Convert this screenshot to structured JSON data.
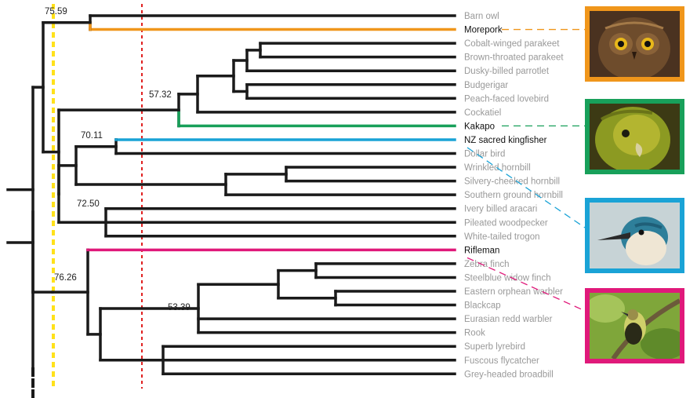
{
  "tree": {
    "leaves": [
      {
        "name": "Barn owl",
        "highlight": false
      },
      {
        "name": "Morepork",
        "highlight": true
      },
      {
        "name": "Cobalt-winged parakeet",
        "highlight": false
      },
      {
        "name": "Brown-throated parakeet",
        "highlight": false
      },
      {
        "name": "Dusky-billed parrotlet",
        "highlight": false
      },
      {
        "name": "Budgerigar",
        "highlight": false
      },
      {
        "name": "Peach-faced lovebird",
        "highlight": false
      },
      {
        "name": "Cockatiel",
        "highlight": false
      },
      {
        "name": "Kakapo",
        "highlight": true
      },
      {
        "name": "NZ sacred kingfisher",
        "highlight": true
      },
      {
        "name": "Dollar bird",
        "highlight": false
      },
      {
        "name": "Wrinkled hornbill",
        "highlight": false
      },
      {
        "name": "Silvery-cheeked hornbill",
        "highlight": false
      },
      {
        "name": "Southern ground hornbill",
        "highlight": false
      },
      {
        "name": "Ivery billed aracari",
        "highlight": false
      },
      {
        "name": "Pileated woodpecker",
        "highlight": false
      },
      {
        "name": "White-tailed trogon",
        "highlight": false
      },
      {
        "name": "Rifleman",
        "highlight": true
      },
      {
        "name": "Zebra finch",
        "highlight": false
      },
      {
        "name": "Steelblue widow finch",
        "highlight": false
      },
      {
        "name": "Eastern orphean warbler",
        "highlight": false
      },
      {
        "name": "Blackcap",
        "highlight": false
      },
      {
        "name": "Eurasian redd warbler",
        "highlight": false
      },
      {
        "name": "Rook",
        "highlight": false
      },
      {
        "name": "Superb lyrebird",
        "highlight": false
      },
      {
        "name": "Fuscous flycatcher",
        "highlight": false
      },
      {
        "name": "Grey-headed broadbill",
        "highlight": false
      }
    ],
    "node_labels": [
      "75.59",
      "57.32",
      "70.11",
      "72.50",
      "76.26",
      "53.39"
    ]
  },
  "photos": [
    {
      "species": "Morepork",
      "subject": "owl",
      "border_color": "#f0961b"
    },
    {
      "species": "Kakapo",
      "subject": "parrot",
      "border_color": "#18a05a"
    },
    {
      "species": "NZ sacred kingfisher",
      "subject": "kingfisher",
      "border_color": "#1aa3d6"
    },
    {
      "species": "Rifleman",
      "subject": "small-bird",
      "border_color": "#e0197a"
    }
  ],
  "colors": {
    "branch": "#1a1a1a",
    "morepork": "#f0961b",
    "kakapo": "#18a05a",
    "kingfisher": "#1aa3d6",
    "rifleman": "#e0197a",
    "yellow_line": "#ffe11a",
    "red_line": "#e02020",
    "leaf_text": "#999999",
    "highlight_text": "#111111"
  }
}
